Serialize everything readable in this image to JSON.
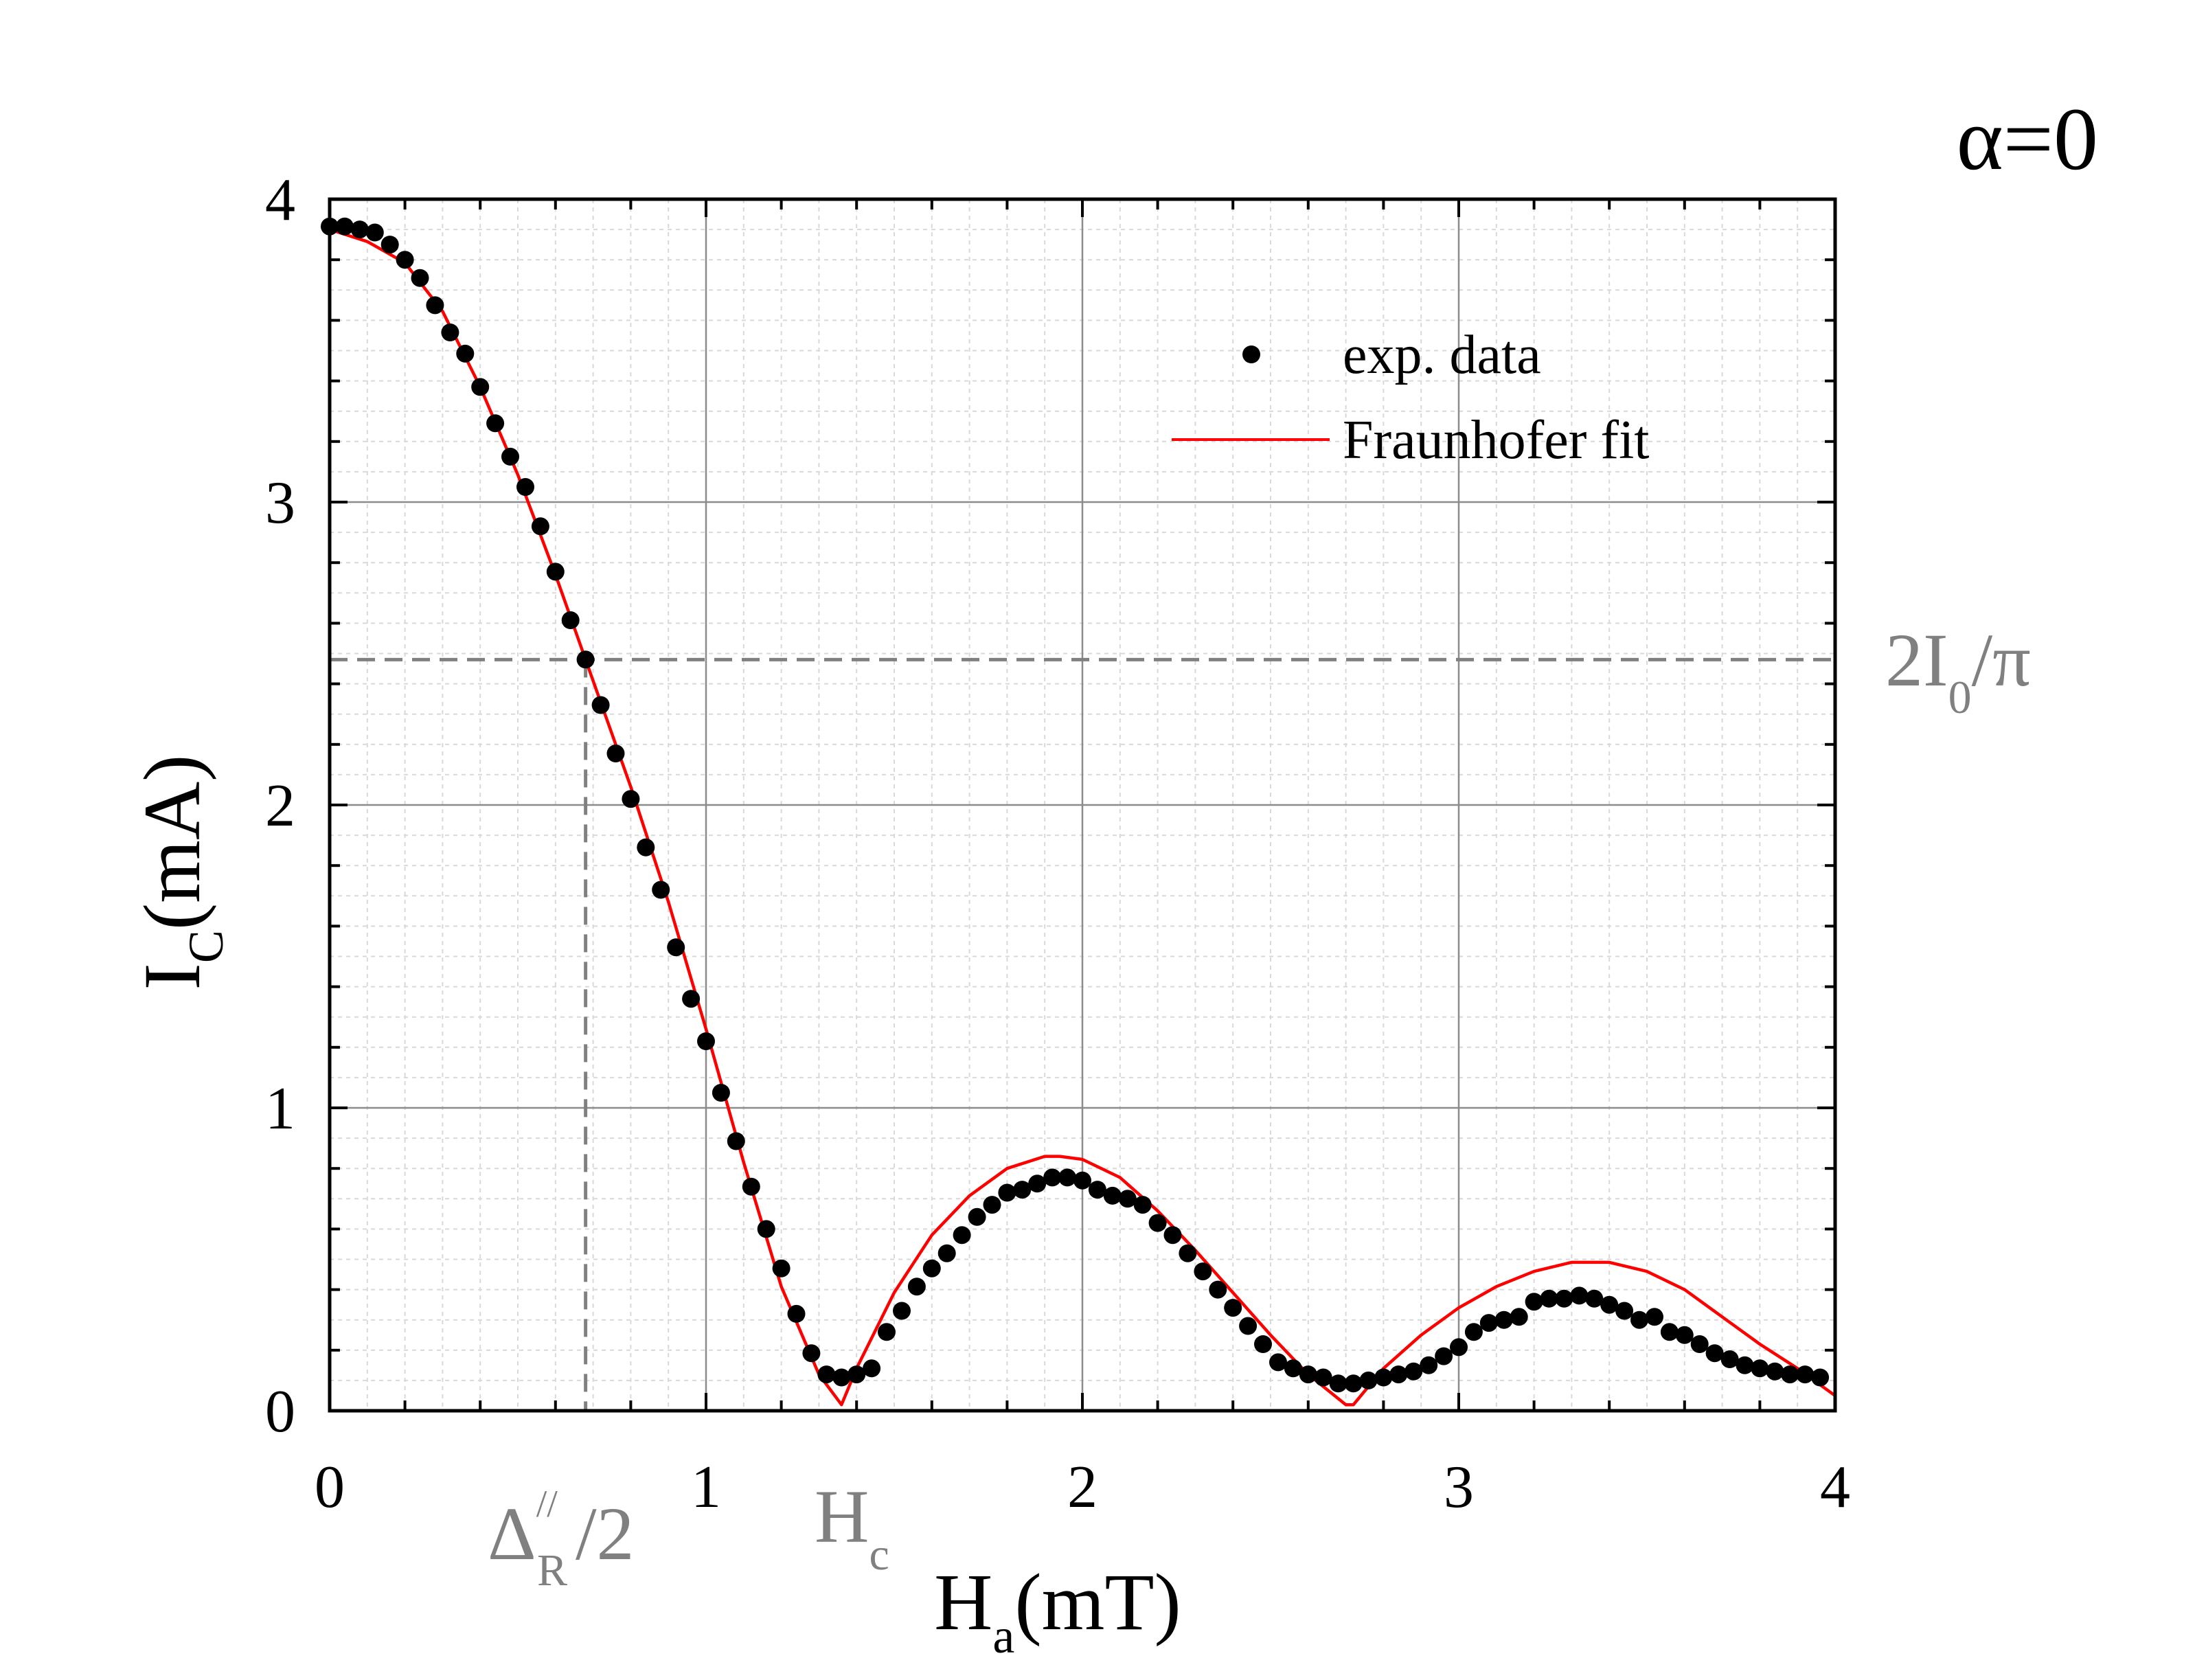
{
  "chart_data": {
    "type": "scatter",
    "xlabel": {
      "main": "H",
      "sub": "a",
      "unit": "(mT)"
    },
    "ylabel": {
      "main": "I",
      "sub": "C",
      "unit": "(mA)"
    },
    "xlim": [
      0,
      4
    ],
    "ylim": [
      0,
      4
    ],
    "xticks": [
      0,
      1,
      2,
      3,
      4
    ],
    "yticks": [
      0,
      1,
      2,
      3,
      4
    ],
    "grid": true,
    "legend_position": "top-right",
    "colors": {
      "data": "#000000",
      "fit": "#ff0000",
      "annotation": "#808080",
      "grid_major": "#8c8c8c",
      "grid_minor": "#d9d9d9"
    },
    "corner_label": "α=0",
    "series": [
      {
        "name": "exp. data",
        "kind": "markers",
        "x": [
          0.0,
          0.04,
          0.08,
          0.12,
          0.16,
          0.2,
          0.24,
          0.28,
          0.32,
          0.36,
          0.4,
          0.44,
          0.48,
          0.52,
          0.56,
          0.6,
          0.64,
          0.68,
          0.72,
          0.76,
          0.8,
          0.84,
          0.88,
          0.92,
          0.96,
          1.0,
          1.04,
          1.08,
          1.12,
          1.16,
          1.2,
          1.24,
          1.28,
          1.32,
          1.36,
          1.4,
          1.44,
          1.48,
          1.52,
          1.56,
          1.6,
          1.64,
          1.68,
          1.72,
          1.76,
          1.8,
          1.84,
          1.88,
          1.92,
          1.96,
          2.0,
          2.04,
          2.08,
          2.12,
          2.16,
          2.2,
          2.24,
          2.28,
          2.32,
          2.36,
          2.4,
          2.44,
          2.48,
          2.52,
          2.56,
          2.6,
          2.64,
          2.68,
          2.72,
          2.76,
          2.8,
          2.84,
          2.88,
          2.92,
          2.96,
          3.0,
          3.04,
          3.08,
          3.12,
          3.16,
          3.2,
          3.24,
          3.28,
          3.32,
          3.36,
          3.4,
          3.44,
          3.48,
          3.52,
          3.56,
          3.6,
          3.64,
          3.68,
          3.72,
          3.76,
          3.8,
          3.84,
          3.88,
          3.92,
          3.96
        ],
        "y": [
          3.91,
          3.91,
          3.9,
          3.89,
          3.85,
          3.8,
          3.74,
          3.65,
          3.56,
          3.49,
          3.38,
          3.26,
          3.15,
          3.05,
          2.92,
          2.77,
          2.61,
          2.48,
          2.33,
          2.17,
          2.02,
          1.86,
          1.72,
          1.53,
          1.36,
          1.22,
          1.05,
          0.89,
          0.74,
          0.6,
          0.47,
          0.32,
          0.19,
          0.12,
          0.11,
          0.12,
          0.14,
          0.26,
          0.33,
          0.41,
          0.47,
          0.52,
          0.58,
          0.64,
          0.68,
          0.72,
          0.73,
          0.75,
          0.77,
          0.77,
          0.76,
          0.73,
          0.71,
          0.7,
          0.68,
          0.62,
          0.58,
          0.52,
          0.46,
          0.4,
          0.34,
          0.28,
          0.22,
          0.16,
          0.14,
          0.12,
          0.11,
          0.09,
          0.09,
          0.1,
          0.11,
          0.12,
          0.13,
          0.15,
          0.18,
          0.21,
          0.26,
          0.29,
          0.3,
          0.31,
          0.36,
          0.37,
          0.37,
          0.38,
          0.37,
          0.35,
          0.33,
          0.3,
          0.31,
          0.26,
          0.25,
          0.22,
          0.19,
          0.17,
          0.15,
          0.14,
          0.13,
          0.12,
          0.12,
          0.11
        ]
      },
      {
        "name": "Fraunhofer fit",
        "kind": "line",
        "x": [
          0.0,
          0.1,
          0.2,
          0.3,
          0.4,
          0.5,
          0.6,
          0.68,
          0.8,
          0.9,
          1.0,
          1.1,
          1.2,
          1.3,
          1.36,
          1.4,
          1.5,
          1.6,
          1.7,
          1.8,
          1.9,
          1.94,
          2.0,
          2.1,
          2.2,
          2.3,
          2.4,
          2.5,
          2.6,
          2.7,
          2.72,
          2.8,
          2.9,
          3.0,
          3.1,
          3.2,
          3.3,
          3.4,
          3.5,
          3.6,
          3.7,
          3.8,
          3.9,
          4.0
        ],
        "y": [
          3.9,
          3.86,
          3.79,
          3.63,
          3.38,
          3.09,
          2.76,
          2.48,
          2.06,
          1.68,
          1.26,
          0.82,
          0.41,
          0.12,
          0.02,
          0.14,
          0.39,
          0.58,
          0.71,
          0.8,
          0.84,
          0.84,
          0.83,
          0.77,
          0.66,
          0.53,
          0.39,
          0.25,
          0.12,
          0.02,
          0.02,
          0.14,
          0.25,
          0.34,
          0.41,
          0.46,
          0.49,
          0.49,
          0.46,
          0.4,
          0.31,
          0.22,
          0.14,
          0.05
        ]
      }
    ],
    "reference_lines": [
      {
        "orientation": "horizontal",
        "value": 2.48,
        "label_main": "2I",
        "label_sub": "0",
        "label_tail": "/π"
      },
      {
        "orientation": "vertical",
        "value": 0.68,
        "label_main": "Δ",
        "label_sup": "//",
        "label_sub": "R",
        "label_tail": "/2"
      }
    ],
    "point_annotations": [
      {
        "x": 1.36,
        "label_main": "H",
        "label_sub": "c"
      }
    ]
  }
}
